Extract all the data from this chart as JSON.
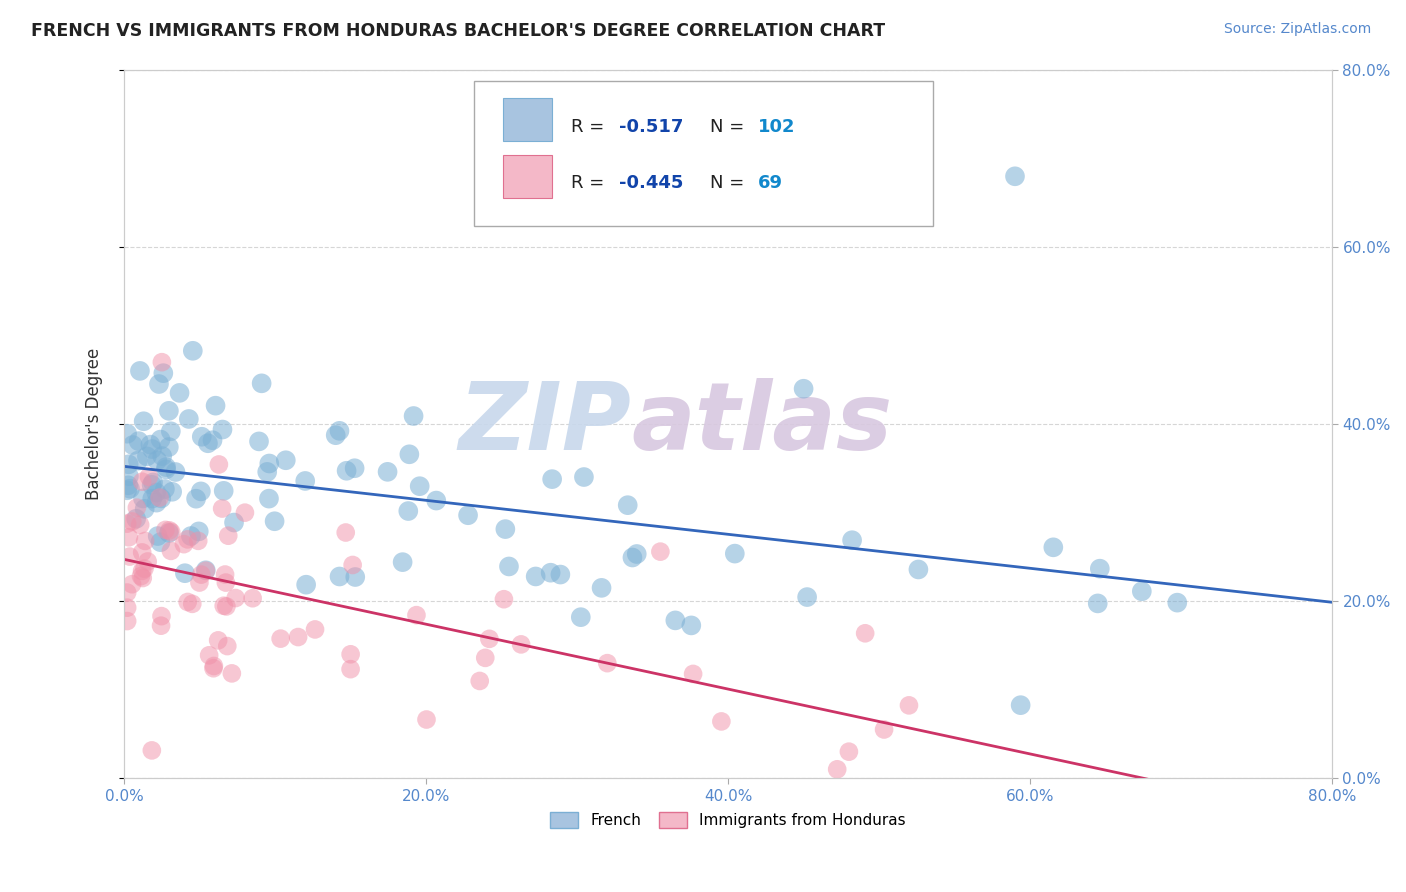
{
  "title": "FRENCH VS IMMIGRANTS FROM HONDURAS BACHELOR'S DEGREE CORRELATION CHART",
  "source_text": "Source: ZipAtlas.com",
  "ylabel": "Bachelor's Degree",
  "legend_entries": [
    {
      "label": "French",
      "color": "#a8c4e0",
      "border_color": "#7bafd4",
      "R": "-0.517",
      "N": "102"
    },
    {
      "label": "Immigrants from Honduras",
      "color": "#f4b8c8",
      "border_color": "#e07090",
      "R": "-0.445",
      "N": "69"
    }
  ],
  "blue_scatter_color": "#7bafd4",
  "pink_scatter_color": "#f090a8",
  "blue_line_color": "#3366bb",
  "pink_line_color": "#cc3366",
  "background_color": "#ffffff",
  "grid_color": "#cccccc",
  "watermark_color": "#c8d8ec",
  "watermark_color2": "#d8c8e0",
  "axis_label_color": "#5588cc",
  "title_color": "#222222",
  "legend_R_color": "#1144aa",
  "legend_N_color": "#1188cc",
  "xtick_vals": [
    0,
    20,
    40,
    60,
    80
  ],
  "ytick_vals": [
    0,
    20,
    40,
    60,
    80
  ],
  "xlim": [
    0,
    80
  ],
  "ylim": [
    0,
    80
  ]
}
